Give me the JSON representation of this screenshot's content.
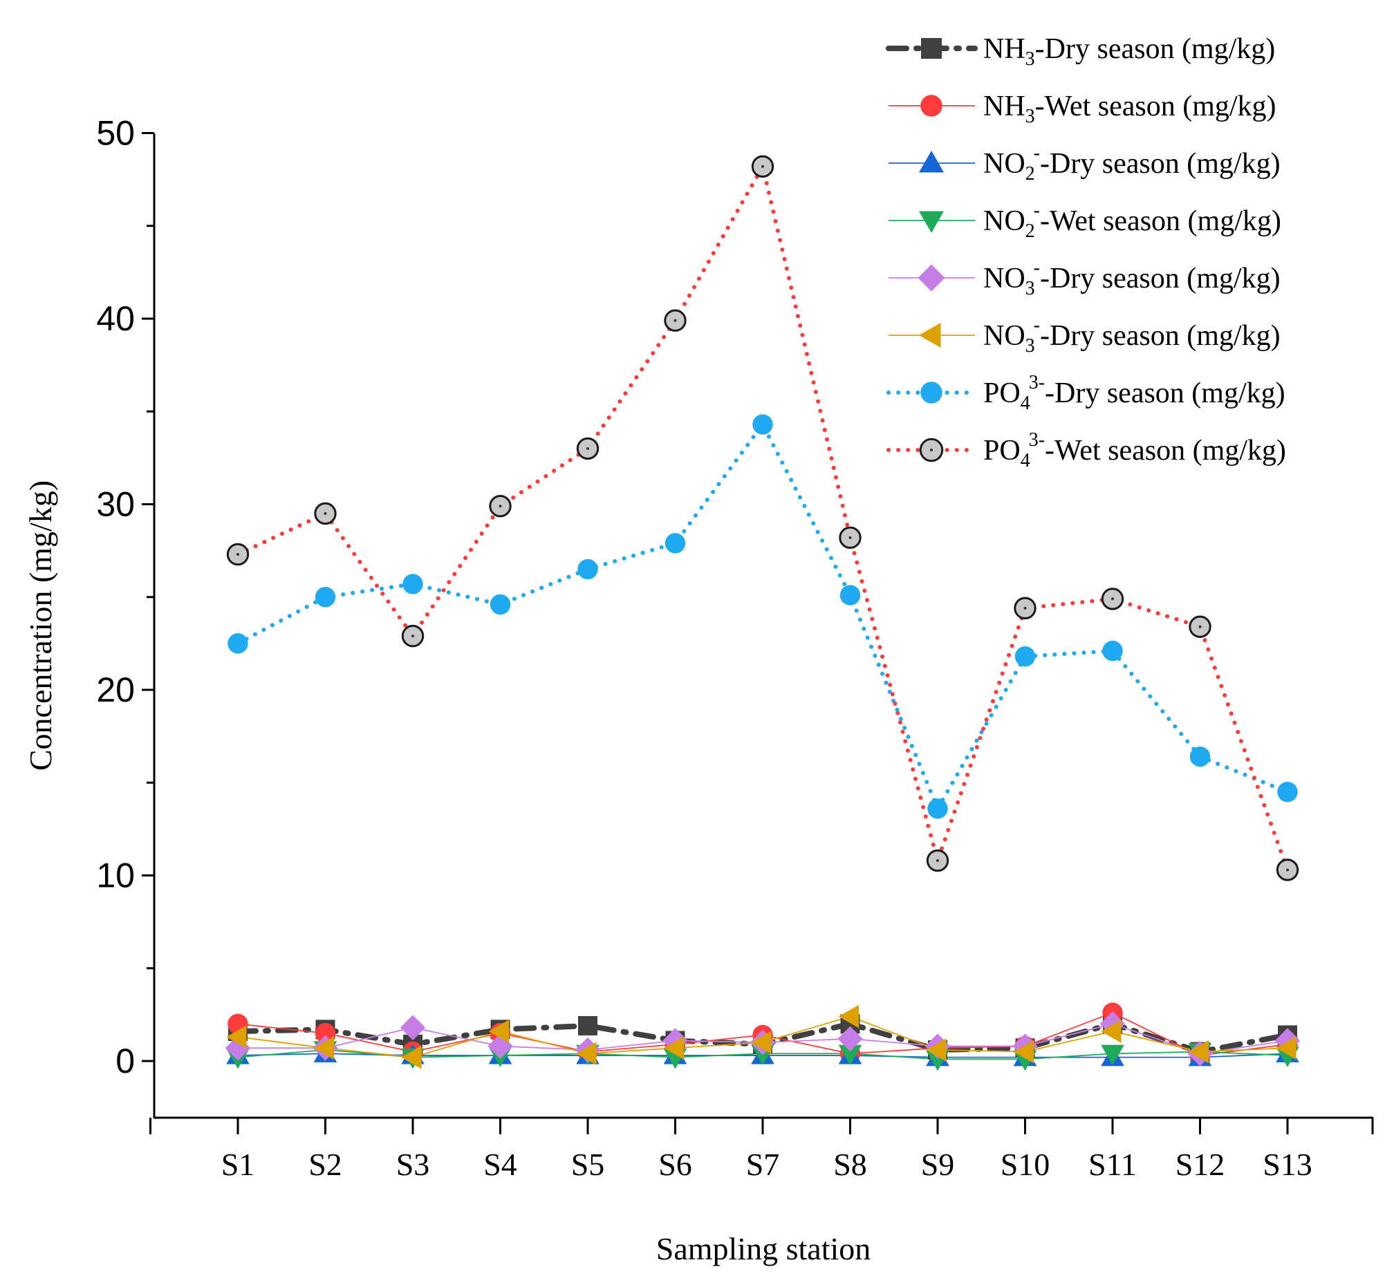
{
  "chart_data": {
    "type": "line",
    "title": "",
    "xlabel": "Sampling station",
    "ylabel": "Concentration (mg/kg)",
    "ylim": [
      -3,
      50
    ],
    "yticks": [
      0,
      10,
      20,
      30,
      40,
      50
    ],
    "categories": [
      "S1",
      "S2",
      "S3",
      "S4",
      "S5",
      "S6",
      "S7",
      "S8",
      "S9",
      "S10",
      "S11",
      "S12",
      "S13"
    ],
    "legend_position": "top-right",
    "series": [
      {
        "legend": {
          "base": "NH",
          "sub": "3",
          "sup": "",
          "suffix": "-Dry season (mg/kg)"
        },
        "color": "#404040",
        "marker": "square",
        "line": "dashdot-thick",
        "values": [
          1.6,
          1.7,
          0.9,
          1.7,
          1.9,
          1.1,
          0.9,
          2.0,
          0.6,
          0.7,
          2.0,
          0.5,
          1.4
        ]
      },
      {
        "legend": {
          "base": "NH",
          "sub": "3",
          "sup": "",
          "suffix": "-Wet season (mg/kg)"
        },
        "color": "#ff3b3b",
        "marker": "circle",
        "line": "solid-thin",
        "values": [
          2.0,
          1.5,
          0.5,
          1.5,
          0.5,
          0.9,
          1.4,
          0.4,
          0.7,
          0.8,
          2.6,
          0.3,
          0.9
        ]
      },
      {
        "legend": {
          "base": "NO",
          "sub": "2",
          "sup": "-",
          "suffix": "-Dry season (mg/kg)"
        },
        "color": "#1565d8",
        "marker": "triangle-up",
        "line": "solid-thin",
        "values": [
          0.3,
          0.4,
          0.3,
          0.3,
          0.3,
          0.3,
          0.3,
          0.3,
          0.2,
          0.2,
          0.2,
          0.2,
          0.4
        ]
      },
      {
        "legend": {
          "base": "NO",
          "sub": "2",
          "sup": "-",
          "suffix": "-Wet season (mg/kg)"
        },
        "color": "#1faa59",
        "marker": "triangle-down",
        "line": "solid-thin",
        "values": [
          0.2,
          0.6,
          0.2,
          0.3,
          0.4,
          0.2,
          0.4,
          0.4,
          0.1,
          0.1,
          0.4,
          0.5,
          0.3
        ]
      },
      {
        "legend": {
          "base": "NO",
          "sub": "3",
          "sup": "-",
          "suffix": "-Dry season (mg/kg)"
        },
        "color": "#c77de8",
        "marker": "diamond",
        "line": "solid-thin",
        "values": [
          0.7,
          0.7,
          1.8,
          0.8,
          0.6,
          1.1,
          1.0,
          1.2,
          0.8,
          0.8,
          2.0,
          0.4,
          1.1
        ]
      },
      {
        "legend": {
          "base": "NO",
          "sub": "3",
          "sup": "-",
          "suffix": "-Dry season (mg/kg)"
        },
        "color": "#dca000",
        "marker": "triangle-left",
        "line": "solid-thin",
        "values": [
          1.3,
          0.7,
          0.2,
          1.6,
          0.4,
          0.7,
          1.0,
          2.4,
          0.6,
          0.5,
          1.6,
          0.5,
          0.7
        ]
      },
      {
        "legend": {
          "base": "PO",
          "sub": "4",
          "sup": "3-",
          "suffix": "-Dry season (mg/kg)"
        },
        "color": "#1fa9f0",
        "marker": "circle",
        "line": "dotted",
        "values": [
          22.5,
          25.0,
          25.7,
          24.6,
          26.5,
          27.9,
          34.3,
          25.1,
          13.6,
          21.8,
          22.1,
          16.4,
          14.5
        ]
      },
      {
        "legend": {
          "base": "PO",
          "sub": "4",
          "sup": "3-",
          "suffix": "-Wet season (mg/kg)"
        },
        "color": "#ff3b3b",
        "marker": "circle-dot",
        "line": "dotted",
        "values": [
          27.3,
          29.5,
          22.9,
          29.9,
          33.0,
          39.9,
          48.2,
          28.2,
          10.8,
          24.4,
          24.9,
          23.4,
          10.3
        ]
      }
    ]
  }
}
